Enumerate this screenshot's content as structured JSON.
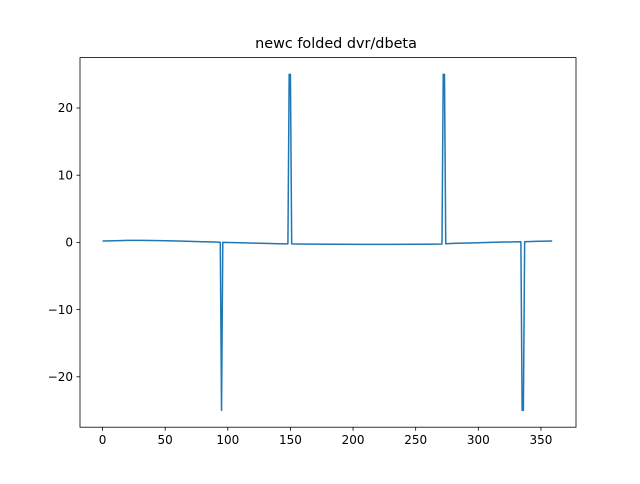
{
  "chart_data": {
    "type": "line",
    "title": "newc folded dvr/dbeta",
    "xlabel": "",
    "ylabel": "",
    "xlim": [
      -18,
      378
    ],
    "ylim": [
      -27.5,
      27.5
    ],
    "xticks": [
      0,
      50,
      100,
      150,
      200,
      250,
      300,
      350
    ],
    "xtick_labels": [
      "0",
      "50",
      "100",
      "150",
      "200",
      "250",
      "300",
      "350"
    ],
    "yticks": [
      -20,
      -10,
      0,
      10,
      20
    ],
    "ytick_labels": [
      "−20",
      "−10",
      "0",
      "10",
      "20"
    ],
    "grid": false,
    "legend": "none",
    "line_color": "#1f77b4",
    "series": [
      {
        "x": [
          0,
          10,
          20,
          30,
          40,
          50,
          60,
          70,
          80,
          90,
          94,
          95,
          96,
          100,
          110,
          120,
          130,
          140,
          148,
          149,
          150,
          151,
          155,
          170,
          190,
          210,
          230,
          250,
          265,
          271,
          272,
          273,
          274,
          280,
          300,
          320,
          334,
          335,
          336,
          337,
          345,
          359
        ],
        "y": [
          0.2,
          0.25,
          0.3,
          0.3,
          0.28,
          0.25,
          0.2,
          0.15,
          0.1,
          0.05,
          0.0,
          -25.0,
          0.0,
          -0.02,
          -0.05,
          -0.1,
          -0.15,
          -0.2,
          -0.22,
          25.0,
          25.0,
          -0.22,
          -0.23,
          -0.25,
          -0.28,
          -0.3,
          -0.3,
          -0.28,
          -0.25,
          -0.24,
          25.0,
          25.0,
          -0.2,
          -0.15,
          -0.05,
          0.05,
          0.1,
          -25.0,
          -25.0,
          0.1,
          0.15,
          0.2
        ]
      }
    ]
  }
}
